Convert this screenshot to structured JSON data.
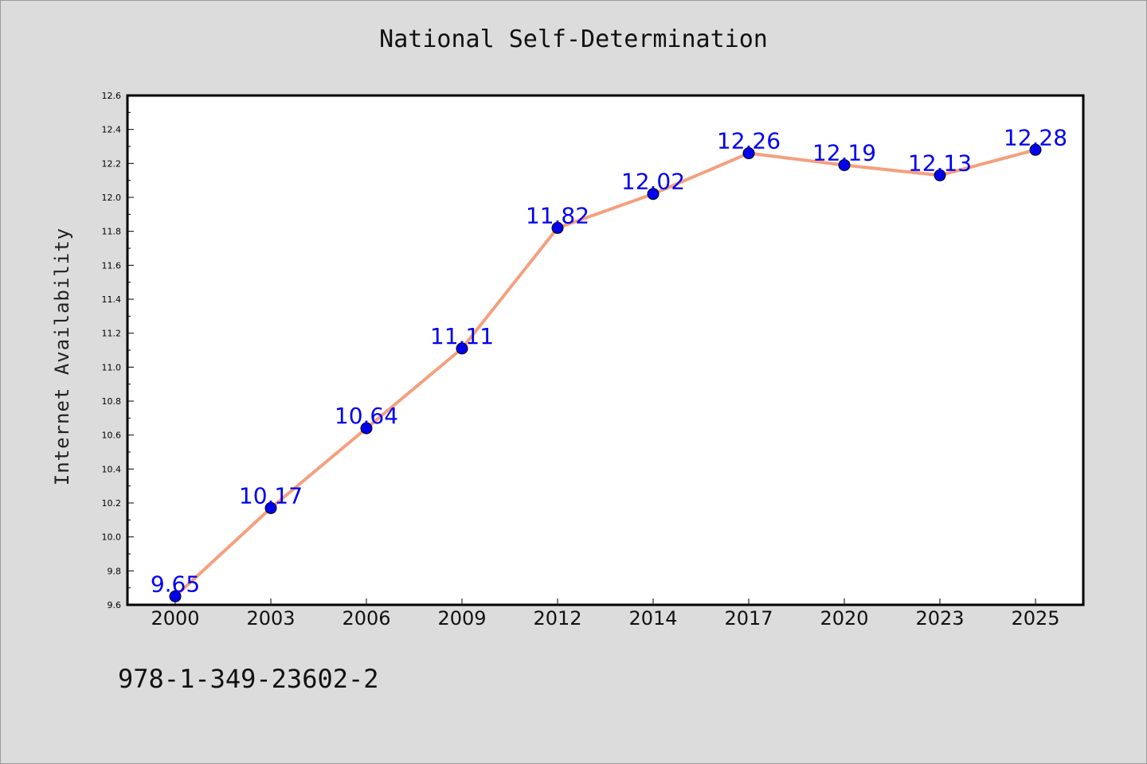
{
  "chart_data": {
    "type": "line",
    "title": "National Self-Determination",
    "xlabel": "",
    "ylabel": "Internet Availability",
    "categories": [
      "2000",
      "2003",
      "2006",
      "2009",
      "2012",
      "2014",
      "2017",
      "2020",
      "2023",
      "2025"
    ],
    "series": [
      {
        "values": [
          9.65,
          10.17,
          10.64,
          11.11,
          11.82,
          12.02,
          12.26,
          12.19,
          12.13,
          12.28
        ]
      }
    ],
    "data_labels": [
      "9.65",
      "10.17",
      "10.64",
      "11.11",
      "11.82",
      "12.02",
      "12.26",
      "12.19",
      "12.13",
      "12.28"
    ],
    "ylim": [
      9.6,
      12.6
    ],
    "y_ticks": [
      "9.6",
      "9.8",
      "10.0",
      "10.2",
      "10.4",
      "10.6",
      "10.8",
      "11.0",
      "11.2",
      "11.4",
      "11.6",
      "11.8",
      "12.0",
      "12.2",
      "12.4",
      "12.6"
    ],
    "grid": false,
    "colors": {
      "line": "#f4a07e",
      "marker": "#0000ee",
      "label": "#0000ee"
    }
  },
  "footer": {
    "text": "978-1-349-23602-2"
  }
}
